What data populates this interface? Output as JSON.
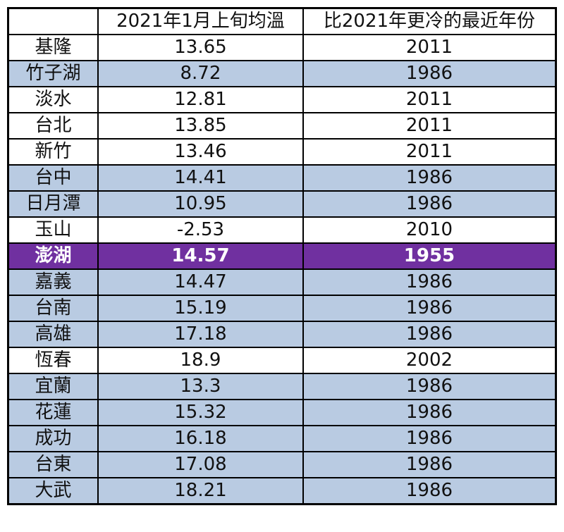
{
  "colors": {
    "row_blue": "#b9cbe2",
    "row_white": "#ffffff",
    "highlight": "#7030a0",
    "highlight_text": "#ffffff"
  },
  "table": {
    "headers": [
      "",
      "2021年1月上旬均溫",
      "比2021年更冷的最近年份"
    ],
    "rows": [
      {
        "station": "基隆",
        "temp": "13.65",
        "year": "2011",
        "style": "white"
      },
      {
        "station": "竹子湖",
        "temp": "8.72",
        "year": "1986",
        "style": "blue"
      },
      {
        "station": "淡水",
        "temp": "12.81",
        "year": "2011",
        "style": "white"
      },
      {
        "station": "台北",
        "temp": "13.85",
        "year": "2011",
        "style": "white"
      },
      {
        "station": "新竹",
        "temp": "13.46",
        "year": "2011",
        "style": "white"
      },
      {
        "station": "台中",
        "temp": "14.41",
        "year": "1986",
        "style": "blue"
      },
      {
        "station": "日月潭",
        "temp": "10.95",
        "year": "1986",
        "style": "blue"
      },
      {
        "station": "玉山",
        "temp": "-2.53",
        "year": "2010",
        "style": "white"
      },
      {
        "station": "澎湖",
        "temp": "14.57",
        "year": "1955",
        "style": "hl"
      },
      {
        "station": "嘉義",
        "temp": "14.47",
        "year": "1986",
        "style": "blue"
      },
      {
        "station": "台南",
        "temp": "15.19",
        "year": "1986",
        "style": "blue"
      },
      {
        "station": "高雄",
        "temp": "17.18",
        "year": "1986",
        "style": "blue"
      },
      {
        "station": "恆春",
        "temp": "18.9",
        "year": "2002",
        "style": "white"
      },
      {
        "station": "宜蘭",
        "temp": "13.3",
        "year": "1986",
        "style": "blue"
      },
      {
        "station": "花蓮",
        "temp": "15.32",
        "year": "1986",
        "style": "blue"
      },
      {
        "station": "成功",
        "temp": "16.18",
        "year": "1986",
        "style": "blue"
      },
      {
        "station": "台東",
        "temp": "17.08",
        "year": "1986",
        "style": "blue"
      },
      {
        "station": "大武",
        "temp": "18.21",
        "year": "1986",
        "style": "blue"
      }
    ]
  }
}
